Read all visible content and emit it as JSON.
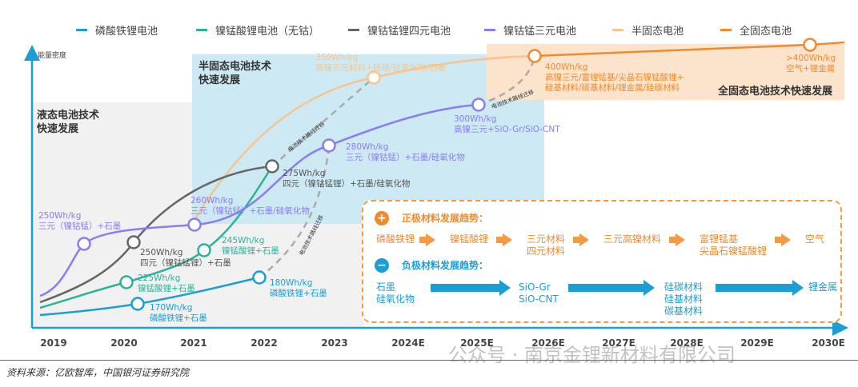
{
  "legend": [
    {
      "label": "磷酸铁锂电池",
      "color": "#1a9ed4"
    },
    {
      "label": "镍锰酸锂电池（无钴）",
      "color": "#2bb39a"
    },
    {
      "label": "镍钴锰锂四元电池",
      "color": "#666666"
    },
    {
      "label": "镍钴锰三元电池",
      "color": "#8b7cf0"
    },
    {
      "label": "半固态电池",
      "color": "#f7c48f"
    },
    {
      "label": "全固态电池",
      "color": "#f08a2c"
    }
  ],
  "axis": {
    "y_label": "能量密度",
    "years": [
      "2019",
      "2020",
      "2021",
      "2022",
      "2023",
      "2024E",
      "2025E",
      "2026E",
      "2027E",
      "2028E",
      "2029E",
      "2030E"
    ]
  },
  "regions": {
    "liquid": "液态电池技术\n快速发展",
    "semi_solid": "半固态电池技术\n快速发展",
    "all_solid": "全固态电池技术快速发展"
  },
  "migration_label": "电池技术路线迁移",
  "points": [
    {
      "series": "lfp",
      "value": "170Wh/kg",
      "desc": "磷酸铁锂+石墨"
    },
    {
      "series": "lfp",
      "value": "180Wh/kg",
      "desc": "磷酸铁锂+石墨"
    },
    {
      "series": "lnmo",
      "value": "225Wh/kg",
      "desc": "镍锰酸锂+石墨"
    },
    {
      "series": "lnmo",
      "value": "245Wh/kg",
      "desc": "镍锰酸锂+石墨"
    },
    {
      "series": "quad",
      "value": "250Wh/kg",
      "desc": "四元（镍钴锰锂）+石墨"
    },
    {
      "series": "quad",
      "value": "275Wh/kg",
      "desc": "四元（镍钴锰锂）+石墨/硅氧化物"
    },
    {
      "series": "ncm",
      "value": "250Wh/kg",
      "desc": "三元（镍钴锰）+石墨"
    },
    {
      "series": "ncm",
      "value": "260Wh/kg",
      "desc": "三元（镍钴锰）+石墨/硅氧化物"
    },
    {
      "series": "ncm",
      "value": "280Wh/kg",
      "desc": "三元（镍钴锰）+石墨/硅氧化物"
    },
    {
      "series": "ncm",
      "value": "300Wh/kg",
      "desc": "高镍三元+SiO-Gr/SiO-CNT"
    },
    {
      "series": "semi",
      "value": "350Wh/kg",
      "desc": "高镍三元材料+硅碳/硅氧化物/石墨"
    },
    {
      "series": "solid",
      "value": "400Wh/kg",
      "desc": "高镍三元/富锂锰基/尖晶石镍锰酸锂+\n硅基材料/碳基材料/锂金属/硅碳材料"
    },
    {
      "series": "solid",
      "value": ">400Wh/kg",
      "desc": "空气+锂金属"
    }
  ],
  "materials": {
    "cathode_title": "正极材料发展趋势：",
    "cathode_steps": [
      "磷酸铁锂",
      "镍锰酸锂",
      "三元材料\n四元材料",
      "三元高镍材料",
      "富锂锰基\n尖晶石镍锰酸锂",
      "空气"
    ],
    "anode_title": "负极材料发展趋势：",
    "anode_steps": [
      "石墨\n硅氧化物",
      "SiO-Gr\nSiO-CNT",
      "硅碳材料\n硅基材料\n碳基材料",
      "锂金属"
    ],
    "plus_icon": "+",
    "minus_icon": "−"
  },
  "watermark": "公众号 · 南京金锂新材料有限公司",
  "source": "资料来源：亿欧智库，中国银河证券研究院"
}
